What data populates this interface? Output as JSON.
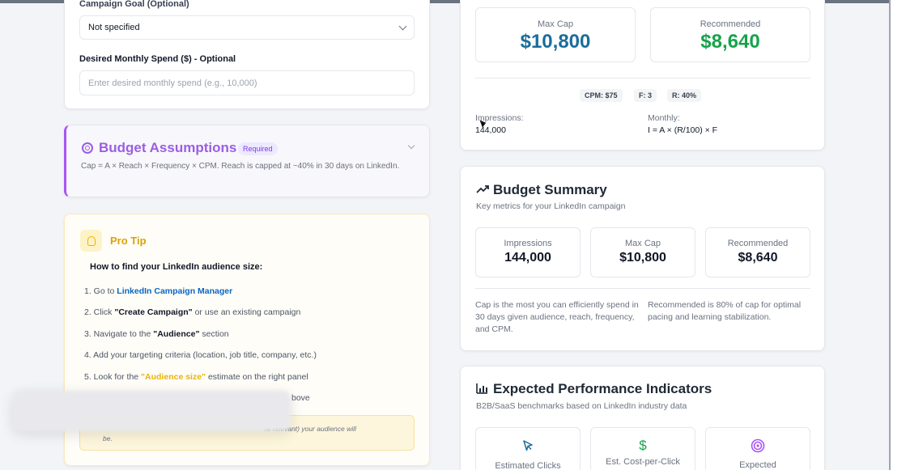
{
  "campaign": {
    "goal_label": "Campaign Goal (Optional)",
    "goal_value": "Not specified",
    "spend_label": "Desired Monthly Spend ($) - Optional",
    "spend_placeholder": "Enter desired monthly spend (e.g., 10,000)"
  },
  "assumptions": {
    "title": "Budget Assumptions",
    "badge": "Required",
    "text": "Cap = A × Reach × Frequency × CPM. Reach is capped at ~40% in 30 days on LinkedIn."
  },
  "pro_tip": {
    "title": "Pro Tip",
    "subtitle": "How to find your LinkedIn audience size:",
    "step1_prefix": "1. Go to ",
    "step1_link": "LinkedIn Campaign Manager",
    "step2_prefix": "2. Click ",
    "step2_bold": "\"Create Campaign\"",
    "step2_suffix": " or use an existing campaign",
    "step3_prefix": "3. Navigate to the ",
    "step3_bold": "\"Audience\"",
    "step3_suffix": " section",
    "step4": "4. Add your targeting criteria (location, job title, company, etc.)",
    "step5_prefix": "5. Look for the ",
    "step5_highlight": "\"Audience size\"",
    "step5_suffix": " estimate on the right panel",
    "step6_fragment": "bove",
    "note_fragment": "re relevant) your audience will",
    "note_fragment2": "be."
  },
  "cap_card": {
    "max_cap_label": "Max Cap",
    "max_cap_value": "$10,800",
    "recommended_label": "Recommended",
    "recommended_value": "$8,640",
    "chips": [
      "CPM: $75",
      "F: 3",
      "R: 40%"
    ],
    "impressions_label": "Impressions:",
    "impressions_value": "144,000",
    "monthly_label": "Monthly:",
    "monthly_formula": "I = A × (R/100) × F"
  },
  "summary": {
    "title": "Budget Summary",
    "subtitle": "Key metrics for your LinkedIn campaign",
    "metrics": [
      {
        "label": "Impressions",
        "value": "144,000"
      },
      {
        "label": "Max Cap",
        "value": "$10,800"
      },
      {
        "label": "Recommended",
        "value": "$8,640"
      }
    ],
    "note_cap": "Cap is the most you can efficiently spend in 30 days given audience, reach, frequency, and CPM.",
    "note_rec": "Recommended is 80% of cap for optimal pacing and learning stabilization."
  },
  "performance": {
    "title": "Expected Performance Indicators",
    "subtitle": "B2B/SaaS benchmarks based on LinkedIn industry data",
    "items": [
      {
        "label": "Estimated Clicks",
        "icon": "cursor-icon"
      },
      {
        "label": "Est. Cost-per-Click",
        "icon": "dollar-icon"
      },
      {
        "label": "Expected",
        "icon": "target-icon"
      }
    ]
  },
  "colors": {
    "max_cap": "#1b6d9b",
    "recommended": "#16a34a",
    "assumptions_accent": "#9b5de5",
    "tip_accent": "#d9a406",
    "link": "#0a66c2"
  }
}
